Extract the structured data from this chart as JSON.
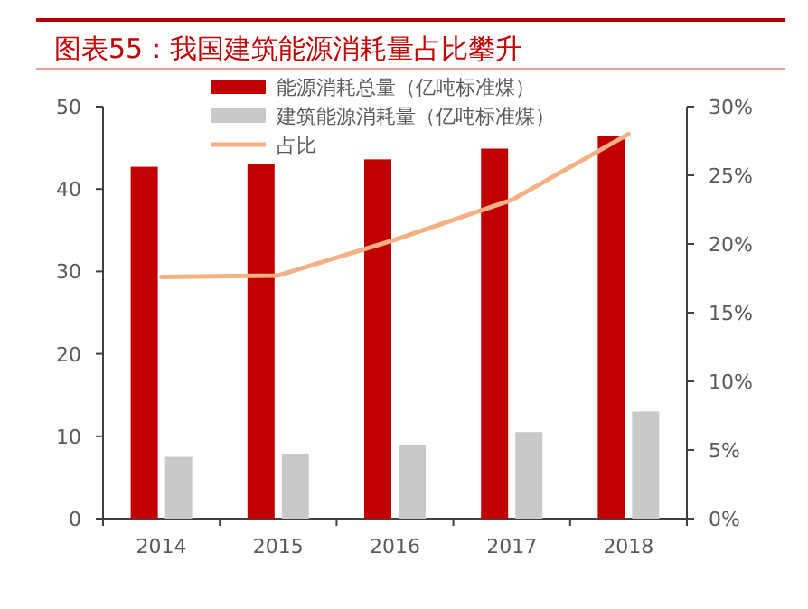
{
  "chart_data": {
    "type": "bar",
    "title": "图表55：我国建筑能源消耗量占比攀升",
    "categories": [
      "2014",
      "2015",
      "2016",
      "2017",
      "2018"
    ],
    "series": [
      {
        "name": "能源消耗总量（亿吨标准煤）",
        "color": "#c00000",
        "values": [
          42.7,
          43.0,
          43.6,
          44.9,
          46.4
        ]
      },
      {
        "name": "建筑能源消耗量（亿吨标准煤）",
        "color": "#c9c9c9",
        "values": [
          7.5,
          7.8,
          9.0,
          10.5,
          13.0
        ]
      },
      {
        "name": "占比",
        "type": "line",
        "axis": "y2",
        "color": "#f4b183",
        "marker": "none",
        "values": [
          17.6,
          17.7,
          20.3,
          23.2,
          28.0
        ]
      }
    ],
    "ylim": [
      0,
      50
    ],
    "yticks": [
      0,
      10,
      20,
      30,
      40,
      50
    ],
    "y2lim": [
      0,
      30
    ],
    "y2ticks": [
      {
        "value": 0,
        "label": "0%"
      },
      {
        "value": 5,
        "label": "5%"
      },
      {
        "value": 10,
        "label": "10%"
      },
      {
        "value": 15,
        "label": "15%"
      },
      {
        "value": 20,
        "label": "20%"
      },
      {
        "value": 25,
        "label": "25%"
      },
      {
        "value": 30,
        "label": "30%"
      }
    ],
    "grid": false,
    "legend": "top"
  }
}
